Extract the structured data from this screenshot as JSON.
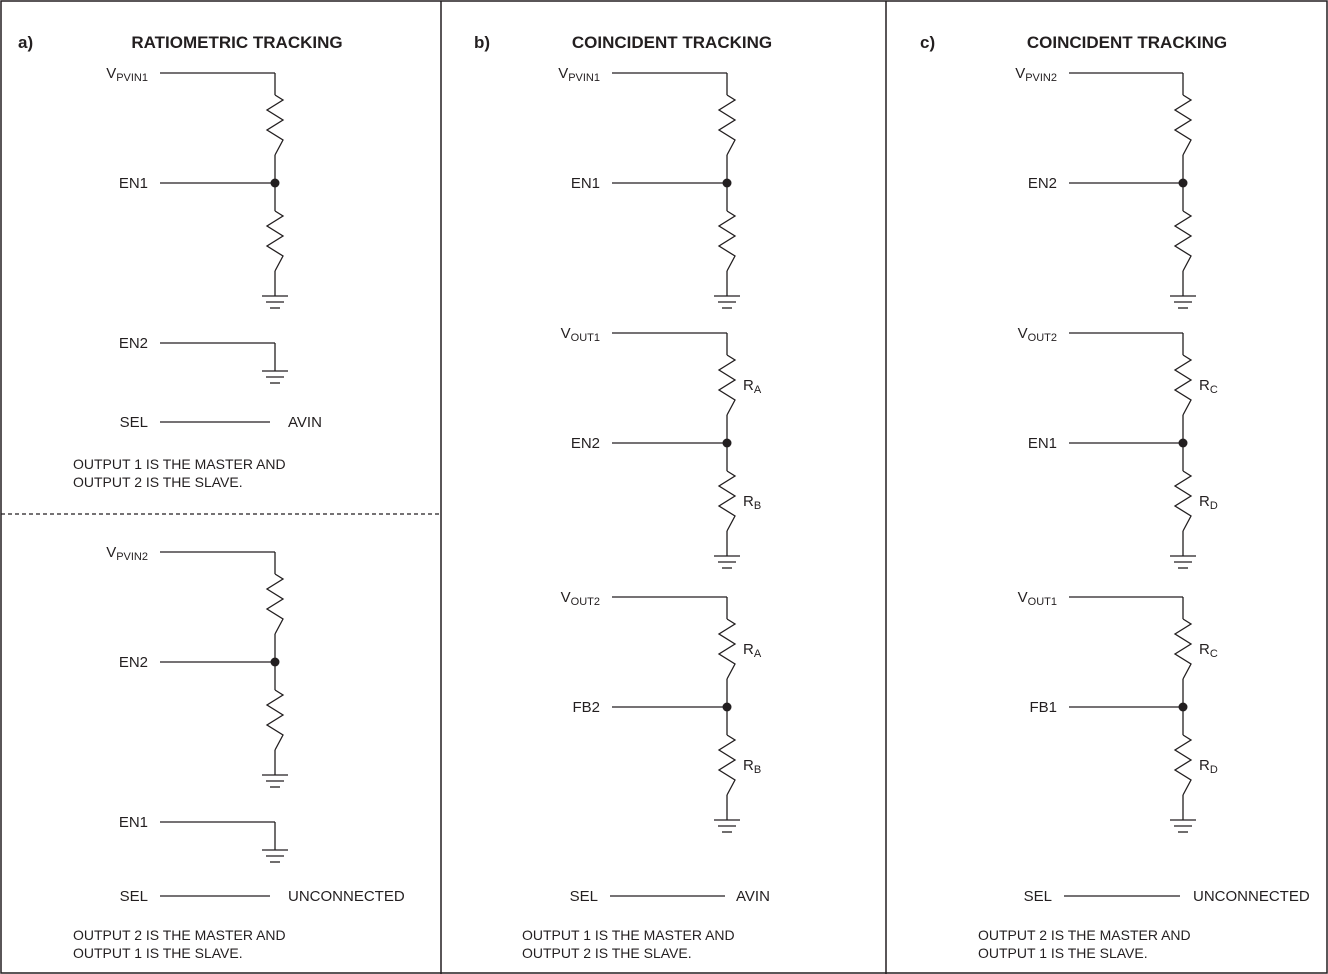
{
  "panels": [
    {
      "letter": "a)",
      "title": "RATIOMETRIC TRACKING",
      "sections": [
        {
          "dividers": [
            {
              "node": "V",
              "node_sub": "PVIN1",
              "mid": "EN1",
              "r_top": "",
              "r_top_sub": "",
              "r_bot": "",
              "r_bot_sub": ""
            }
          ],
          "grounded": "EN2",
          "sel": {
            "label": "SEL",
            "value": "AVIN"
          },
          "notes": [
            "OUTPUT 1 IS THE MASTER AND",
            "OUTPUT 2 IS THE SLAVE."
          ]
        },
        {
          "dividers": [
            {
              "node": "V",
              "node_sub": "PVIN2",
              "mid": "EN2",
              "r_top": "",
              "r_top_sub": "",
              "r_bot": "",
              "r_bot_sub": ""
            }
          ],
          "grounded": "EN1",
          "sel": {
            "label": "SEL",
            "value": "UNCONNECTED"
          },
          "notes": [
            "OUTPUT 2 IS THE MASTER AND",
            "OUTPUT 1 IS THE SLAVE."
          ]
        }
      ]
    },
    {
      "letter": "b)",
      "title": "COINCIDENT TRACKING",
      "sections": [
        {
          "dividers": [
            {
              "node": "V",
              "node_sub": "PVIN1",
              "mid": "EN1",
              "r_top": "",
              "r_top_sub": "",
              "r_bot": "",
              "r_bot_sub": ""
            },
            {
              "node": "V",
              "node_sub": "OUT1",
              "mid": "EN2",
              "r_top": "R",
              "r_top_sub": "A",
              "r_bot": "R",
              "r_bot_sub": "B"
            },
            {
              "node": "V",
              "node_sub": "OUT2",
              "mid": "FB2",
              "r_top": "R",
              "r_top_sub": "A",
              "r_bot": "R",
              "r_bot_sub": "B"
            }
          ],
          "grounded": "",
          "sel": {
            "label": "SEL",
            "value": "AVIN"
          },
          "notes": [
            "OUTPUT 1 IS THE MASTER AND",
            "OUTPUT 2 IS THE SLAVE."
          ]
        }
      ]
    },
    {
      "letter": "c)",
      "title": "COINCIDENT TRACKING",
      "sections": [
        {
          "dividers": [
            {
              "node": "V",
              "node_sub": "PVIN2",
              "mid": "EN2",
              "r_top": "",
              "r_top_sub": "",
              "r_bot": "",
              "r_bot_sub": ""
            },
            {
              "node": "V",
              "node_sub": "OUT2",
              "mid": "EN1",
              "r_top": "R",
              "r_top_sub": "C",
              "r_bot": "R",
              "r_bot_sub": "D"
            },
            {
              "node": "V",
              "node_sub": "OUT1",
              "mid": "FB1",
              "r_top": "R",
              "r_top_sub": "C",
              "r_bot": "R",
              "r_bot_sub": "D"
            }
          ],
          "grounded": "",
          "sel": {
            "label": "SEL",
            "value": "UNCONNECTED"
          },
          "notes": [
            "OUTPUT 2 IS THE MASTER AND",
            "OUTPUT 1 IS THE SLAVE."
          ]
        }
      ]
    }
  ]
}
